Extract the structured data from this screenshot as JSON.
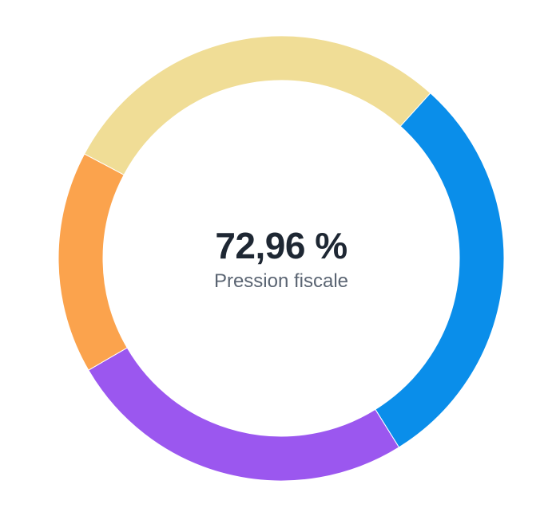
{
  "chart_data": {
    "type": "pie",
    "variant": "donut",
    "center_value": "72,96 %",
    "center_label": "Pression fiscale",
    "legend": "none",
    "slices": [
      {
        "value": 25.4,
        "color": "#f0dd96"
      },
      {
        "value": 25.9,
        "color": "#0a8eea"
      },
      {
        "value": 22.4,
        "color": "#9b57ef"
      },
      {
        "value": 14.2,
        "color": "#fba34d"
      }
    ],
    "slice_order": "clockwise from 12 o'clock-ish start, first slice begins at top (~-62° from top)"
  }
}
